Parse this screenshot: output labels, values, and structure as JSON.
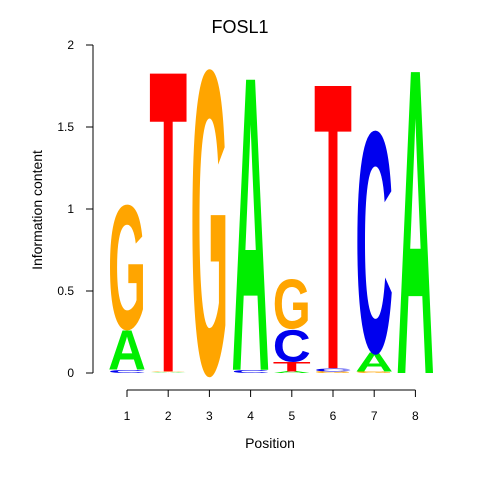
{
  "chart_data": {
    "type": "sequence-logo",
    "title": "FOSL1",
    "xlabel": "Position",
    "ylabel": "Information content",
    "ylim": [
      0,
      2
    ],
    "yticks": [
      "0",
      "0.5",
      "1",
      "1.5",
      "2"
    ],
    "yticks_values": [
      0,
      0.5,
      1,
      1.5,
      2
    ],
    "positions": [
      "1",
      "2",
      "3",
      "4",
      "5",
      "6",
      "7",
      "8"
    ],
    "colors": {
      "A": "#00ee00",
      "C": "#0000ee",
      "G": "#ffa500",
      "T": "#ff0000"
    },
    "stacks": [
      [
        {
          "letter": "C",
          "value": 0.02
        },
        {
          "letter": "A",
          "value": 0.25
        },
        {
          "letter": "G",
          "value": 0.78
        }
      ],
      [
        {
          "letter": "A",
          "value": 0.005
        },
        {
          "letter": "G",
          "value": 0.005
        },
        {
          "letter": "T",
          "value": 1.9
        }
      ],
      [
        {
          "letter": "G",
          "value": 1.91
        }
      ],
      [
        {
          "letter": "C",
          "value": 0.02
        },
        {
          "letter": "A",
          "value": 1.85
        }
      ],
      [
        {
          "letter": "A",
          "value": 0.01
        },
        {
          "letter": "T",
          "value": 0.06
        },
        {
          "letter": "C",
          "value": 0.2
        },
        {
          "letter": "G",
          "value": 0.31
        }
      ],
      [
        {
          "letter": "G",
          "value": 0.01
        },
        {
          "letter": "C",
          "value": 0.02
        },
        {
          "letter": "T",
          "value": 1.8
        }
      ],
      [
        {
          "letter": "G",
          "value": 0.01
        },
        {
          "letter": "A",
          "value": 0.12
        },
        {
          "letter": "C",
          "value": 1.39
        }
      ],
      [
        {
          "letter": "A",
          "value": 1.92
        }
      ]
    ]
  }
}
